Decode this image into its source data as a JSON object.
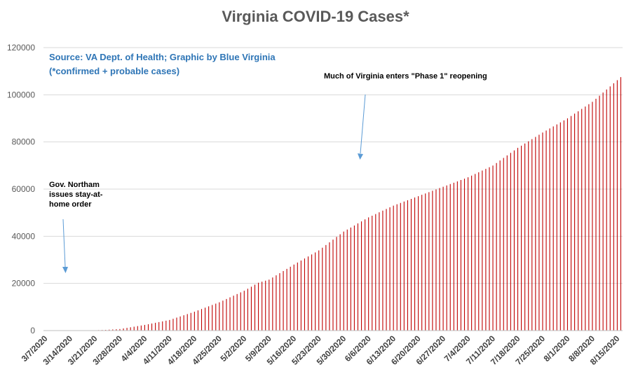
{
  "chart_data": {
    "type": "bar",
    "title": "Virginia COVID-19 Cases*",
    "xlabel": "",
    "ylabel": "",
    "ylim": [
      0,
      120000
    ],
    "yticks": [
      "0",
      "20000",
      "40000",
      "60000",
      "80000",
      "100000",
      "120000"
    ],
    "grid": true,
    "x_tick_labels": [
      "3/7/2020",
      "3/14/2020",
      "3/21/2020",
      "3/28/2020",
      "4/4/2020",
      "4/11/2020",
      "4/18/2020",
      "4/25/2020",
      "5/2/2020",
      "5/9/2020",
      "5/16/2020",
      "5/23/2020",
      "5/30/2020",
      "6/6/2020",
      "6/13/2020",
      "6/20/2020",
      "6/27/2020",
      "7/4/2020",
      "7/11/2020",
      "7/18/2020",
      "7/25/2020",
      "8/1/2020",
      "8/8/2020",
      "8/15/2020"
    ],
    "x_start": "3/7/2020",
    "x_end": "8/16/2020",
    "series": [
      {
        "color": "#c00000",
        "x": [
          "3/7/2020",
          "3/14/2020",
          "3/21/2020",
          "3/24/2020",
          "3/28/2020",
          "4/4/2020",
          "4/11/2020",
          "4/18/2020",
          "4/25/2020",
          "5/2/2020",
          "5/6/2020",
          "5/9/2020",
          "5/16/2020",
          "5/23/2020",
          "5/30/2020",
          "6/6/2020",
          "6/13/2020",
          "6/20/2020",
          "6/27/2020",
          "7/4/2020",
          "7/11/2020",
          "7/18/2020",
          "7/25/2020",
          "8/1/2020",
          "8/8/2020",
          "8/16/2020"
        ],
        "values": [
          0,
          45,
          150,
          290,
          650,
          2400,
          4500,
          8000,
          12000,
          16900,
          20300,
          21600,
          28000,
          34000,
          42000,
          48000,
          53000,
          57000,
          61000,
          65000,
          70000,
          77500,
          84000,
          90000,
          97000,
          107500
        ]
      }
    ],
    "annotations": [
      {
        "text": [
          "Source: VA Dept. of Health; Graphic by Blue Virginia",
          "(*confirmed + probable cases)"
        ]
      },
      {
        "text": [
          "Much of Virginia enters \"Phase 1\" reopening"
        ]
      },
      {
        "text": [
          "Gov. Northam",
          "issues stay-at-",
          "home order"
        ]
      }
    ]
  }
}
